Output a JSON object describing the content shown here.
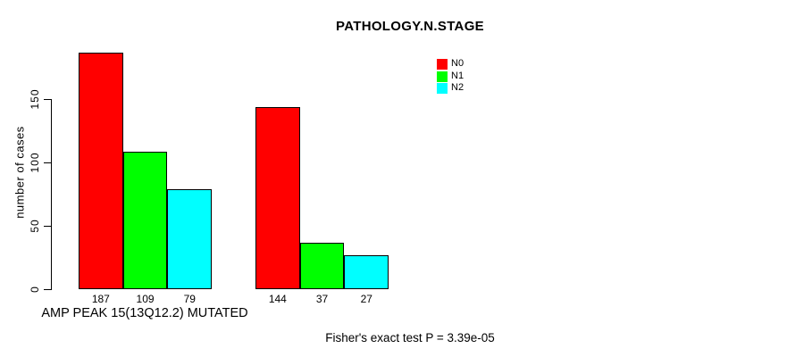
{
  "chart_data": {
    "type": "bar",
    "title": "PATHOLOGY.N.STAGE",
    "ylabel": "number of cases",
    "xlabel": "AMP PEAK 15(13Q12.2) MUTATED",
    "ylim": [
      0,
      150
    ],
    "yticks": [
      0,
      50,
      100,
      150
    ],
    "grid": false,
    "legend_position": "top-right",
    "legend": [
      {
        "label": "N0",
        "color": "#ff0000"
      },
      {
        "label": "N1",
        "color": "#00ff00"
      },
      {
        "label": "N2",
        "color": "#00ffff"
      }
    ],
    "groups": [
      {
        "label": "AMP PEAK 15(13Q12.2) MUTATED",
        "values": [
          187,
          109,
          79
        ]
      },
      {
        "label": "",
        "values": [
          144,
          37,
          27
        ]
      }
    ],
    "series": [
      {
        "name": "N0",
        "color": "#ff0000",
        "values": [
          187,
          144
        ]
      },
      {
        "name": "N1",
        "color": "#00ff00",
        "values": [
          109,
          37
        ]
      },
      {
        "name": "N2",
        "color": "#00ffff",
        "values": [
          79,
          27
        ]
      }
    ],
    "annotation": "Fisher's exact test P = 3.39e-05"
  }
}
